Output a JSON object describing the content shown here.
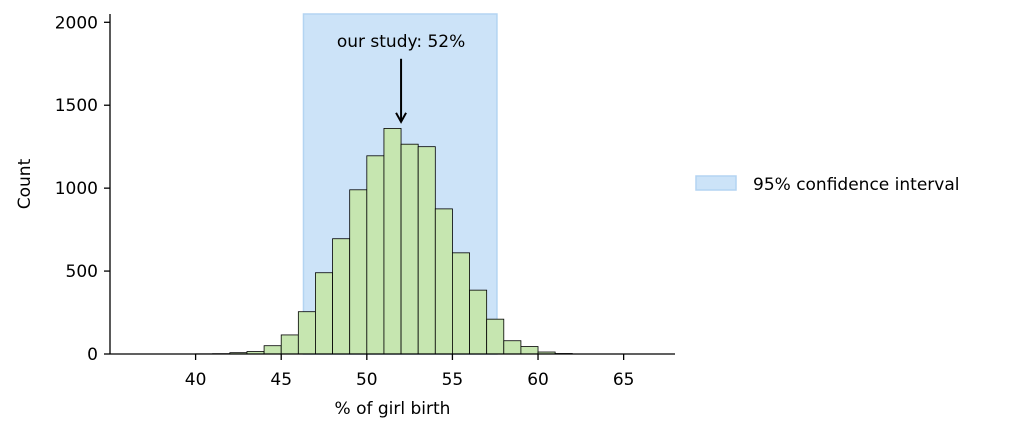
{
  "chart_data": {
    "type": "bar",
    "xlabel": "% of girl birth",
    "ylabel": "Count",
    "xlim": [
      35,
      68
    ],
    "ylim": [
      0,
      2050
    ],
    "xticks": [
      40,
      45,
      50,
      55,
      60,
      65
    ],
    "yticks": [
      0,
      500,
      1000,
      1500,
      2000
    ],
    "bin_width": 1,
    "bins": [
      {
        "x0": 40,
        "count": 1
      },
      {
        "x0": 41,
        "count": 2
      },
      {
        "x0": 42,
        "count": 8
      },
      {
        "x0": 43,
        "count": 15
      },
      {
        "x0": 44,
        "count": 50
      },
      {
        "x0": 45,
        "count": 115
      },
      {
        "x0": 46,
        "count": 255
      },
      {
        "x0": 47,
        "count": 490
      },
      {
        "x0": 48,
        "count": 695
      },
      {
        "x0": 49,
        "count": 990
      },
      {
        "x0": 50,
        "count": 1195
      },
      {
        "x0": 51,
        "count": 1360
      },
      {
        "x0": 52,
        "count": 1265
      },
      {
        "x0": 53,
        "count": 1250
      },
      {
        "x0": 54,
        "count": 875
      },
      {
        "x0": 55,
        "count": 610
      },
      {
        "x0": 56,
        "count": 385
      },
      {
        "x0": 57,
        "count": 210
      },
      {
        "x0": 58,
        "count": 80
      },
      {
        "x0": 59,
        "count": 45
      },
      {
        "x0": 60,
        "count": 12
      },
      {
        "x0": 61,
        "count": 3
      }
    ],
    "interval": {
      "x0": 46.3,
      "x1": 57.6,
      "label": "95% confidence interval"
    },
    "annotation": {
      "text": "our study: 52%",
      "x": 52,
      "y_tip": 1400,
      "y_tail": 1780
    },
    "legend_position": "center-right",
    "grid": false,
    "colors": {
      "bar_fill": "#c6e6b0",
      "bar_edge": "#000000",
      "interval_fill": "#cce3f8",
      "interval_edge": "#b3d4f2"
    }
  }
}
